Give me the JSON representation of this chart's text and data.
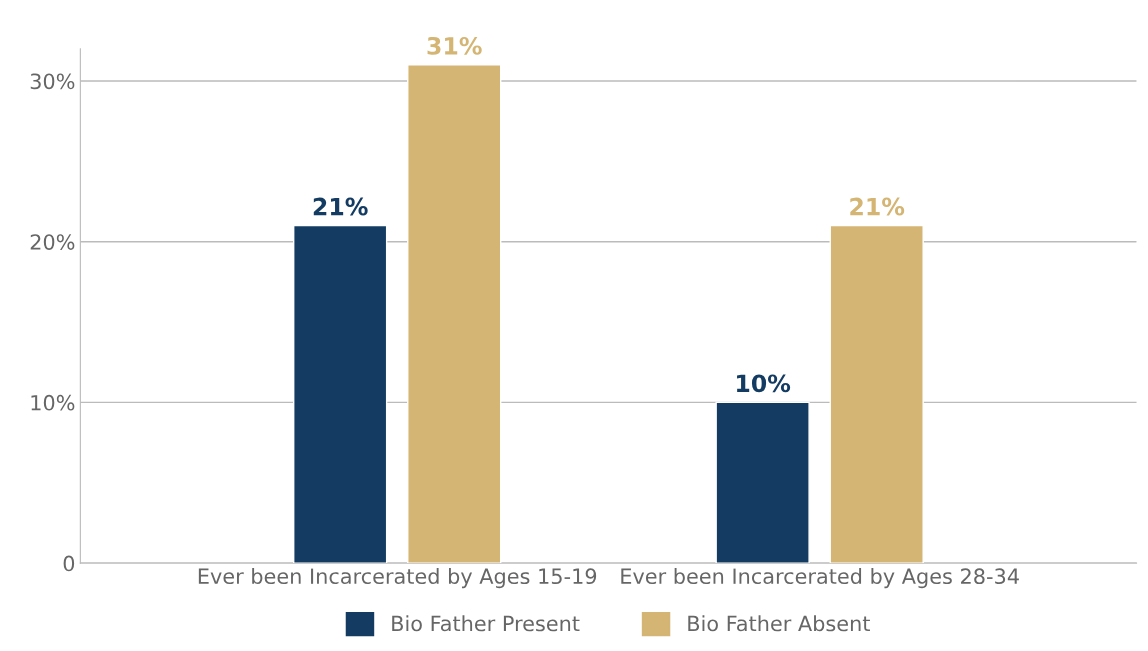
{
  "chart_data": {
    "type": "bar",
    "categories": [
      "Ever been Incarcerated by Ages 15-19",
      "Ever been Incarcerated by Ages 28-34"
    ],
    "series": [
      {
        "name": "Bio Father Present",
        "color": "#143c62",
        "values": [
          21,
          10
        ],
        "value_labels": [
          "21%",
          "10%"
        ]
      },
      {
        "name": "Bio Father Absent",
        "color": "#d4b574",
        "values": [
          31,
          21
        ],
        "value_labels": [
          "31%",
          "21%"
        ]
      }
    ],
    "ylim": [
      0,
      32
    ],
    "yticks": [
      0,
      {
        "value": 10,
        "label": "10%"
      },
      {
        "value": 20,
        "label": "20%"
      },
      {
        "value": 30,
        "label": "30%"
      }
    ],
    "grid": "y",
    "legend": "bottom"
  }
}
